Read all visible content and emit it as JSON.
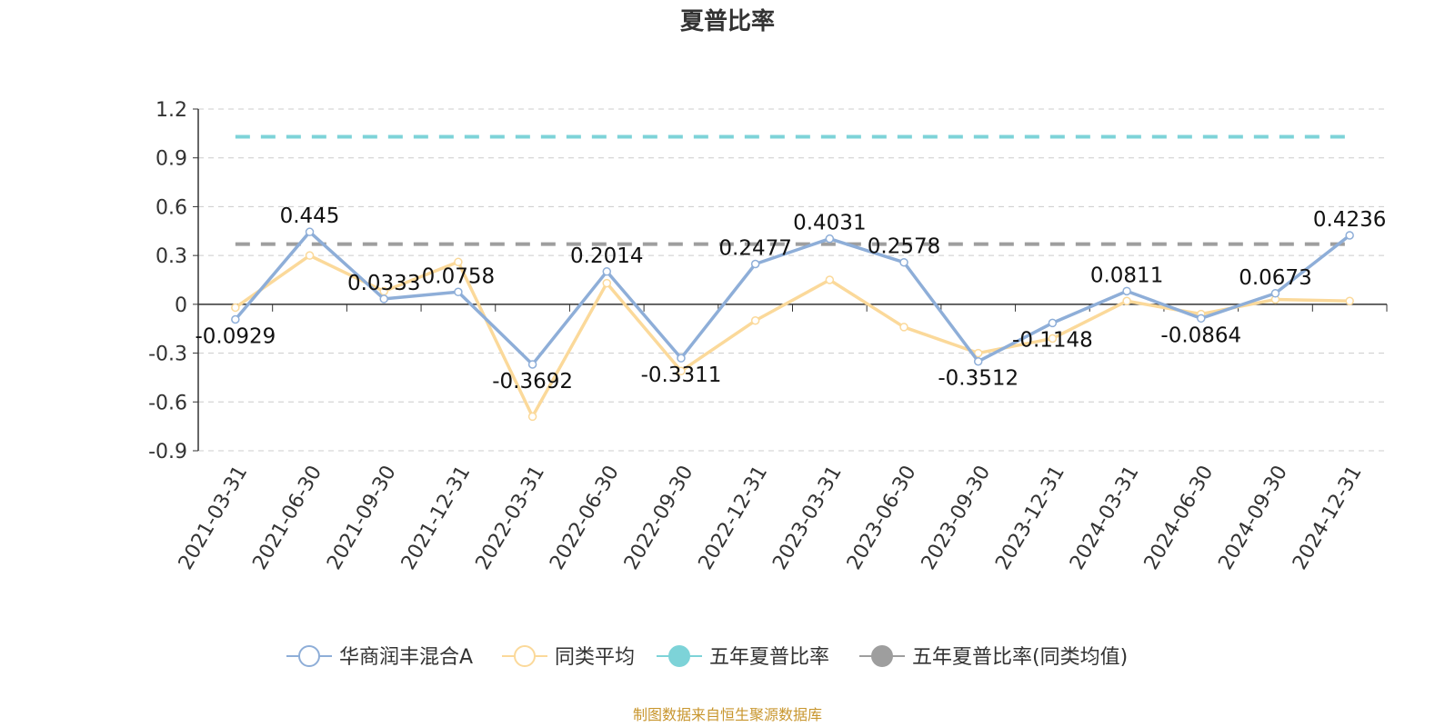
{
  "chart_data": {
    "type": "line",
    "title": "夏普比率",
    "x": [
      "2021-03-31",
      "2021-06-30",
      "2021-09-30",
      "2021-12-31",
      "2022-03-31",
      "2022-06-30",
      "2022-09-30",
      "2022-12-31",
      "2023-03-31",
      "2023-06-30",
      "2023-09-30",
      "2023-12-31",
      "2024-03-31",
      "2024-06-30",
      "2024-09-30",
      "2024-12-31"
    ],
    "ylim": [
      -0.9,
      1.2
    ],
    "yticks": [
      "1.2",
      "0.9",
      "0.6",
      "0.3",
      "0",
      "-0.3",
      "-0.6",
      "-0.9"
    ],
    "grid": true,
    "legend_position": "bottom",
    "series": [
      {
        "name": "华商润丰混合A",
        "color": "#8eaed8",
        "values": [
          -0.0929,
          0.445,
          0.0333,
          0.0758,
          -0.3692,
          0.2014,
          -0.3311,
          0.2477,
          0.4031,
          0.2578,
          -0.3512,
          -0.1148,
          0.0811,
          -0.0864,
          0.0673,
          0.4236
        ],
        "labels": [
          "-0.0929",
          "0.445",
          "0.0333",
          "0.0758",
          "-0.3692",
          "0.2014",
          "-0.3311",
          "0.2477",
          "0.4031",
          "0.2578",
          "-0.3512",
          "-0.1148",
          "0.0811",
          "-0.0864",
          "0.0673",
          "0.4236"
        ]
      },
      {
        "name": "同类平均",
        "color": "#fbd99a",
        "values": [
          -0.02,
          0.3,
          0.08,
          0.26,
          -0.69,
          0.13,
          -0.41,
          -0.1,
          0.15,
          -0.14,
          -0.3,
          -0.21,
          0.02,
          -0.06,
          0.03,
          0.02
        ]
      },
      {
        "name": "五年夏普比率",
        "color": "#7dd3d8",
        "constant": 1.03
      },
      {
        "name": "五年夏普比率(同类均值)",
        "color": "#9e9e9e",
        "constant": 0.37
      }
    ],
    "source": "制图数据来自恒生聚源数据库"
  }
}
